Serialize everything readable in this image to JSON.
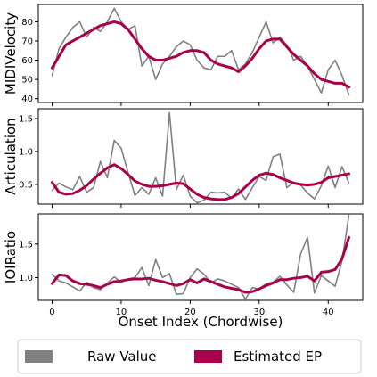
{
  "chart_data": {
    "type": "line",
    "shared_xlabel": "Onset Index (Chordwise)",
    "x_ticks": [
      0,
      10,
      20,
      30,
      40
    ],
    "xlim": [
      -2,
      45
    ],
    "legend": {
      "placement": "bottom",
      "entries": [
        {
          "label": "Raw Value",
          "color": "#808080"
        },
        {
          "label": "Estimated EP",
          "color": "#a8004a"
        }
      ]
    },
    "subplots": [
      {
        "ylabel": "MIDIVelocity",
        "ylim": [
          38,
          89
        ],
        "y_ticks": [
          40,
          50,
          60,
          70,
          80
        ],
        "series": [
          {
            "name": "Raw Value",
            "color": "#808080",
            "x": [
              0,
              1,
              2,
              3,
              4,
              5,
              6,
              7,
              8,
              9,
              10,
              11,
              12,
              13,
              14,
              15,
              16,
              17,
              18,
              19,
              20,
              21,
              22,
              23,
              24,
              25,
              26,
              27,
              28,
              29,
              30,
              31,
              32,
              33,
              34,
              35,
              36,
              37,
              38,
              39,
              40,
              41,
              42,
              43
            ],
            "y": [
              52,
              66,
              72,
              77,
              80,
              72,
              77,
              75,
              80,
              87,
              80,
              76,
              78,
              57,
              62,
              50,
              58,
              62,
              67,
              70,
              68,
              60,
              56,
              55,
              62,
              62,
              65,
              55,
              58,
              64,
              72,
              80,
              69,
              72,
              68,
              60,
              62,
              57,
              50,
              43,
              55,
              60,
              52,
              42
            ]
          },
          {
            "name": "Estimated EP",
            "color": "#a8004a",
            "x": [
              0,
              1,
              2,
              3,
              4,
              5,
              6,
              7,
              8,
              9,
              10,
              11,
              12,
              13,
              14,
              15,
              16,
              17,
              18,
              19,
              20,
              21,
              22,
              23,
              24,
              25,
              26,
              27,
              28,
              29,
              30,
              31,
              32,
              33,
              34,
              35,
              36,
              37,
              38,
              39,
              40,
              41,
              42,
              43
            ],
            "y": [
              56,
              62,
              68,
              70,
              72,
              74,
              76,
              78,
              79,
              80,
              79,
              76,
              71,
              66,
              62,
              60,
              60,
              61,
              62,
              64,
              65,
              65,
              64,
              60,
              58,
              57,
              56,
              54,
              57,
              61,
              66,
              70,
              71,
              71,
              67,
              63,
              60,
              57,
              53,
              50,
              49,
              48,
              48,
              46
            ]
          }
        ]
      },
      {
        "ylabel": "Articulation",
        "ylim": [
          0.2,
          1.65
        ],
        "y_ticks": [
          0.5,
          1.0,
          1.5
        ],
        "series": [
          {
            "name": "Raw Value",
            "color": "#808080",
            "x": [
              0,
              1,
              2,
              3,
              4,
              5,
              6,
              7,
              8,
              9,
              10,
              11,
              12,
              13,
              14,
              15,
              16,
              17,
              18,
              19,
              20,
              21,
              22,
              23,
              24,
              25,
              26,
              27,
              28,
              29,
              30,
              31,
              32,
              33,
              34,
              35,
              36,
              37,
              38,
              39,
              40,
              41,
              42,
              43
            ],
            "y": [
              0.41,
              0.52,
              0.46,
              0.42,
              0.62,
              0.38,
              0.45,
              0.85,
              0.6,
              1.17,
              1.05,
              0.68,
              0.33,
              0.45,
              0.35,
              0.6,
              0.32,
              1.59,
              0.42,
              0.64,
              0.32,
              0.22,
              0.26,
              0.38,
              0.37,
              0.38,
              0.29,
              0.43,
              0.27,
              0.45,
              0.62,
              0.56,
              0.92,
              0.96,
              0.45,
              0.53,
              0.49,
              0.37,
              0.28,
              0.48,
              0.78,
              0.45,
              0.77,
              0.52
            ]
          },
          {
            "name": "Estimated EP",
            "color": "#a8004a",
            "x": [
              0,
              1,
              2,
              3,
              4,
              5,
              6,
              7,
              8,
              9,
              10,
              11,
              12,
              13,
              14,
              15,
              16,
              17,
              18,
              19,
              20,
              21,
              22,
              23,
              24,
              25,
              26,
              27,
              28,
              29,
              30,
              31,
              32,
              33,
              34,
              35,
              36,
              37,
              38,
              39,
              40,
              41,
              42,
              43
            ],
            "y": [
              0.53,
              0.38,
              0.35,
              0.36,
              0.41,
              0.48,
              0.58,
              0.67,
              0.75,
              0.8,
              0.74,
              0.65,
              0.55,
              0.5,
              0.47,
              0.47,
              0.48,
              0.5,
              0.52,
              0.51,
              0.43,
              0.35,
              0.3,
              0.28,
              0.27,
              0.27,
              0.3,
              0.36,
              0.46,
              0.56,
              0.64,
              0.67,
              0.65,
              0.6,
              0.56,
              0.52,
              0.5,
              0.49,
              0.5,
              0.53,
              0.6,
              0.62,
              0.64,
              0.66
            ]
          }
        ]
      },
      {
        "ylabel": "IOIRatio",
        "ylim": [
          0.66,
          1.95
        ],
        "y_ticks": [
          1.0,
          1.5
        ],
        "series": [
          {
            "name": "Raw Value",
            "color": "#808080",
            "x": [
              0,
              1,
              2,
              3,
              4,
              5,
              6,
              7,
              8,
              9,
              10,
              11,
              12,
              13,
              14,
              15,
              16,
              17,
              18,
              19,
              20,
              21,
              22,
              23,
              24,
              25,
              26,
              27,
              28,
              29,
              30,
              31,
              32,
              33,
              34,
              35,
              36,
              37,
              38,
              39,
              40,
              41,
              42,
              43
            ],
            "y": [
              1.05,
              0.95,
              0.92,
              0.86,
              0.8,
              0.93,
              0.85,
              0.82,
              0.92,
              1.01,
              0.93,
              0.98,
              1.0,
              1.15,
              0.88,
              1.27,
              1.0,
              1.06,
              0.75,
              0.76,
              1.0,
              1.13,
              1.05,
              0.92,
              0.98,
              0.95,
              0.9,
              0.85,
              0.68,
              0.85,
              0.83,
              0.91,
              0.93,
              1.02,
              0.89,
              0.78,
              1.35,
              1.6,
              0.77,
              1.03,
              0.95,
              0.87,
              1.25,
              1.93
            ]
          },
          {
            "name": "Estimated EP",
            "color": "#a8004a",
            "x": [
              0,
              1,
              2,
              3,
              4,
              5,
              6,
              7,
              8,
              9,
              10,
              11,
              12,
              13,
              14,
              15,
              16,
              17,
              18,
              19,
              20,
              21,
              22,
              23,
              24,
              25,
              26,
              27,
              28,
              29,
              30,
              31,
              32,
              33,
              34,
              35,
              36,
              37,
              38,
              39,
              40,
              41,
              42,
              43
            ],
            "y": [
              0.91,
              1.04,
              1.03,
              0.95,
              0.91,
              0.9,
              0.88,
              0.85,
              0.9,
              0.94,
              0.95,
              0.97,
              0.98,
              0.98,
              0.99,
              0.96,
              0.94,
              0.91,
              0.88,
              0.91,
              0.97,
              0.92,
              0.98,
              0.94,
              0.9,
              0.86,
              0.84,
              0.82,
              0.78,
              0.79,
              0.83,
              0.88,
              0.92,
              0.97,
              0.97,
              0.99,
              1.0,
              1.02,
              0.95,
              1.08,
              1.09,
              1.12,
              1.28,
              1.6
            ]
          }
        ]
      }
    ]
  }
}
